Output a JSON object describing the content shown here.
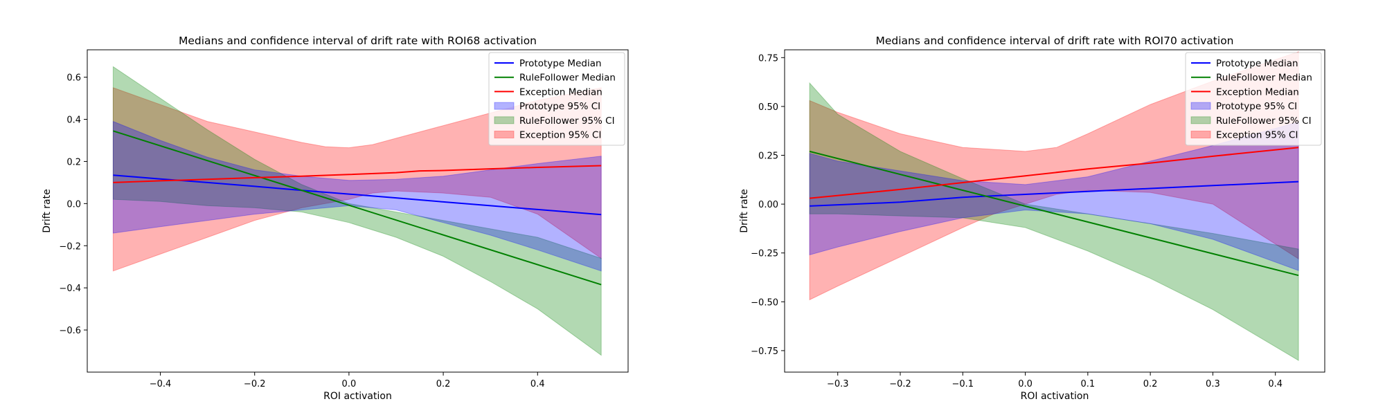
{
  "chart_data": [
    {
      "type": "line",
      "title": "Medians and confidence interval of drift rate with ROI68 activation",
      "xlabel": "ROI activation",
      "ylabel": "Drift rate",
      "xlim": [
        -0.555,
        0.592
      ],
      "ylim": [
        -0.8,
        0.73
      ],
      "xticks": [
        -0.4,
        -0.2,
        0.0,
        0.2,
        0.4
      ],
      "yticks": [
        -0.6,
        -0.4,
        -0.2,
        0.0,
        0.2,
        0.4,
        0.6
      ],
      "xtick_labels": [
        "−0.4",
        "−0.2",
        "0.0",
        "0.2",
        "0.4"
      ],
      "ytick_labels": [
        "−0.6",
        "−0.4",
        "−0.2",
        "0.0",
        "0.2",
        "0.4",
        "0.6"
      ],
      "legend_position": "top-right",
      "series": [
        {
          "name": "Prototype Median",
          "color": "#0000ff",
          "x": [
            -0.5,
            -0.4,
            -0.3,
            -0.2,
            -0.1,
            0.0,
            0.1,
            0.2,
            0.3,
            0.4,
            0.535
          ],
          "values": [
            0.135,
            0.117,
            0.1,
            0.082,
            0.063,
            0.045,
            0.027,
            0.008,
            -0.01,
            -0.028,
            -0.052
          ]
        },
        {
          "name": "RuleFollower Median",
          "color": "#008000",
          "x": [
            -0.5,
            0.535
          ],
          "values": [
            0.345,
            -0.385
          ]
        },
        {
          "name": "Exception Median",
          "color": "#ff0000",
          "x": [
            -0.5,
            -0.4,
            -0.3,
            -0.2,
            -0.1,
            0.0,
            0.1,
            0.15,
            0.2,
            0.3,
            0.4,
            0.535
          ],
          "values": [
            0.1,
            0.108,
            0.115,
            0.123,
            0.13,
            0.138,
            0.147,
            0.155,
            0.157,
            0.165,
            0.172,
            0.18
          ]
        }
      ],
      "bands": [
        {
          "name": "Exception 95% CI",
          "color": "#ff0000",
          "alpha": 0.3,
          "x": [
            -0.5,
            -0.4,
            -0.3,
            -0.2,
            -0.1,
            -0.05,
            0.0,
            0.05,
            0.1,
            0.2,
            0.3,
            0.4,
            0.535
          ],
          "lower": [
            -0.32,
            -0.24,
            -0.16,
            -0.08,
            -0.02,
            0.0,
            0.02,
            0.05,
            0.06,
            0.05,
            0.03,
            -0.05,
            -0.26
          ],
          "upper": [
            0.55,
            0.47,
            0.39,
            0.34,
            0.29,
            0.27,
            0.265,
            0.28,
            0.31,
            0.37,
            0.43,
            0.49,
            0.55
          ]
        },
        {
          "name": "RuleFollower 95% CI",
          "color": "#008000",
          "alpha": 0.3,
          "x": [
            -0.5,
            -0.4,
            -0.3,
            -0.2,
            -0.1,
            0.0,
            0.1,
            0.2,
            0.3,
            0.4,
            0.535
          ],
          "lower": [
            0.02,
            0.01,
            -0.01,
            -0.02,
            -0.04,
            -0.09,
            -0.16,
            -0.25,
            -0.37,
            -0.5,
            -0.72
          ],
          "upper": [
            0.65,
            0.5,
            0.35,
            0.21,
            0.09,
            0.0,
            -0.04,
            -0.08,
            -0.12,
            -0.16,
            -0.26
          ]
        },
        {
          "name": "Prototype 95% CI",
          "color": "#0000ff",
          "alpha": 0.3,
          "x": [
            -0.5,
            -0.4,
            -0.3,
            -0.2,
            -0.1,
            0.0,
            0.1,
            0.2,
            0.3,
            0.4,
            0.535
          ],
          "lower": [
            -0.14,
            -0.11,
            -0.08,
            -0.05,
            -0.03,
            -0.01,
            -0.03,
            -0.09,
            -0.15,
            -0.22,
            -0.32
          ],
          "upper": [
            0.39,
            0.3,
            0.22,
            0.16,
            0.13,
            0.11,
            0.115,
            0.13,
            0.16,
            0.19,
            0.225
          ]
        }
      ]
    },
    {
      "type": "line",
      "title": "Medians and confidence interval of drift rate with ROI70 activation",
      "xlabel": "ROI activation",
      "ylabel": "Drift rate",
      "xlim": [
        -0.385,
        0.479
      ],
      "ylim": [
        -0.86,
        0.79
      ],
      "xticks": [
        -0.3,
        -0.2,
        -0.1,
        0.0,
        0.1,
        0.2,
        0.3,
        0.4
      ],
      "yticks": [
        -0.75,
        -0.5,
        -0.25,
        0.0,
        0.25,
        0.5,
        0.75
      ],
      "xtick_labels": [
        "−0.3",
        "−0.2",
        "−0.1",
        "0.0",
        "0.1",
        "0.2",
        "0.3",
        "0.4"
      ],
      "ytick_labels": [
        "−0.75",
        "−0.50",
        "−0.25",
        "0.00",
        "0.25",
        "0.50",
        "0.75"
      ],
      "legend_position": "top-right",
      "series": [
        {
          "name": "Prototype Median",
          "color": "#0000ff",
          "x": [
            -0.345,
            -0.2,
            -0.1,
            0.0,
            0.1,
            0.2,
            0.3,
            0.437
          ],
          "values": [
            -0.01,
            0.01,
            0.035,
            0.05,
            0.065,
            0.08,
            0.095,
            0.115
          ]
        },
        {
          "name": "RuleFollower Median",
          "color": "#008000",
          "x": [
            -0.345,
            0.437
          ],
          "values": [
            0.27,
            -0.365
          ]
        },
        {
          "name": "Exception Median",
          "color": "#ff0000",
          "x": [
            -0.345,
            -0.2,
            -0.1,
            0.0,
            0.1,
            0.2,
            0.3,
            0.437
          ],
          "values": [
            0.03,
            0.075,
            0.11,
            0.145,
            0.18,
            0.21,
            0.245,
            0.29
          ]
        }
      ],
      "bands": [
        {
          "name": "Exception 95% CI",
          "color": "#ff0000",
          "alpha": 0.3,
          "x": [
            -0.345,
            -0.3,
            -0.2,
            -0.1,
            -0.05,
            0.0,
            0.05,
            0.1,
            0.2,
            0.3,
            0.437
          ],
          "lower": [
            -0.49,
            -0.42,
            -0.27,
            -0.12,
            -0.05,
            0.0,
            0.05,
            0.07,
            0.06,
            0.0,
            -0.28
          ],
          "upper": [
            0.53,
            0.47,
            0.36,
            0.29,
            0.28,
            0.27,
            0.29,
            0.36,
            0.51,
            0.63,
            0.78
          ]
        },
        {
          "name": "RuleFollower 95% CI",
          "color": "#008000",
          "alpha": 0.3,
          "x": [
            -0.345,
            -0.3,
            -0.2,
            -0.1,
            0.0,
            0.1,
            0.2,
            0.3,
            0.437
          ],
          "lower": [
            -0.05,
            -0.05,
            -0.06,
            -0.07,
            -0.12,
            -0.24,
            -0.38,
            -0.54,
            -0.8
          ],
          "upper": [
            0.62,
            0.46,
            0.27,
            0.13,
            0.0,
            -0.05,
            -0.1,
            -0.15,
            -0.23
          ]
        },
        {
          "name": "Prototype 95% CI",
          "color": "#0000ff",
          "alpha": 0.3,
          "x": [
            -0.345,
            -0.3,
            -0.2,
            -0.1,
            0.0,
            0.1,
            0.2,
            0.3,
            0.437
          ],
          "lower": [
            -0.26,
            -0.22,
            -0.14,
            -0.07,
            -0.03,
            -0.05,
            -0.1,
            -0.18,
            -0.34
          ],
          "upper": [
            0.26,
            0.22,
            0.17,
            0.12,
            0.1,
            0.14,
            0.22,
            0.3,
            0.42
          ]
        }
      ]
    }
  ],
  "legend_entries": [
    {
      "label": "Prototype Median",
      "kind": "line",
      "color": "#0000ff"
    },
    {
      "label": "RuleFollower Median",
      "kind": "line",
      "color": "#008000"
    },
    {
      "label": "Exception Median",
      "kind": "line",
      "color": "#ff0000"
    },
    {
      "label": "Prototype 95% CI",
      "kind": "patch",
      "color": "#0000ff"
    },
    {
      "label": "RuleFollower 95% CI",
      "kind": "patch",
      "color": "#008000"
    },
    {
      "label": "Exception 95% CI",
      "kind": "patch",
      "color": "#ff0000"
    }
  ]
}
